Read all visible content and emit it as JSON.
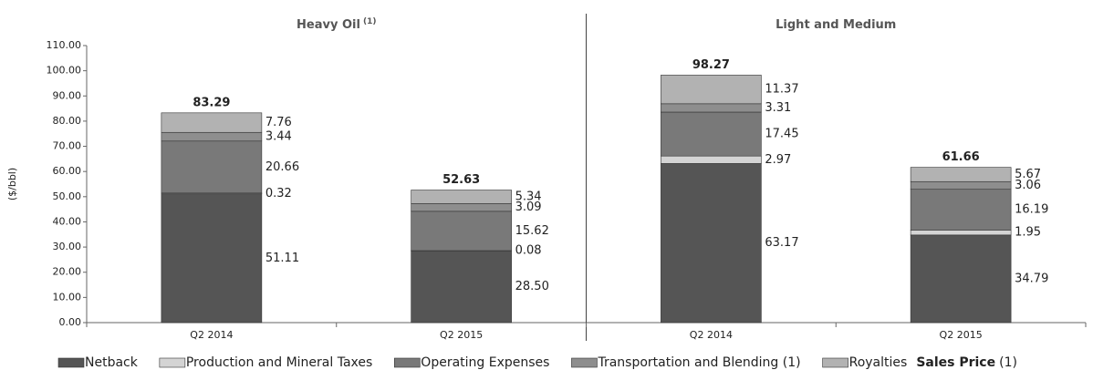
{
  "chart_data": {
    "type": "stacked_bar",
    "y_label": "($/bbl)",
    "panels": [
      {
        "title": "Heavy Oil",
        "title_note": "(1)",
        "categories": [
          "Q2 2014",
          "Q2 2015"
        ]
      },
      {
        "title": "Light and Medium",
        "categories": [
          "Q2 2014",
          "Q2 2015"
        ]
      }
    ],
    "series": [
      {
        "name": "Netback",
        "color": "#555555",
        "values": [
          51.11,
          28.5,
          63.17,
          34.79
        ],
        "value_labels": [
          "51.11",
          "28.50",
          "63.17",
          "34.79"
        ]
      },
      {
        "name": "Production and Mineral Taxes",
        "color": "#d4d4d4",
        "values": [
          0.32,
          0.08,
          2.97,
          1.95
        ],
        "value_labels": [
          "0.32",
          "0.08",
          "2.97",
          "1.95"
        ]
      },
      {
        "name": "Operating Expenses",
        "color": "#797979",
        "values": [
          20.66,
          15.62,
          17.45,
          16.19
        ],
        "value_labels": [
          "20.66",
          "15.62",
          "17.45",
          "16.19"
        ]
      },
      {
        "name": "Transportation and Blending (1)",
        "color": "#8e8e8e",
        "values": [
          3.44,
          3.09,
          3.31,
          3.06
        ],
        "value_labels": [
          "3.44",
          "3.09",
          "3.31",
          "3.06"
        ]
      },
      {
        "name": "Royalties",
        "color": "#b2b2b2",
        "values": [
          7.76,
          5.34,
          11.37,
          5.67
        ],
        "value_labels": [
          "7.76",
          "5.34",
          "11.37",
          "5.67"
        ]
      }
    ],
    "totals_name": "Sales Price",
    "totals_note": "(1)",
    "totals": [
      83.29,
      52.63,
      98.27,
      61.66
    ],
    "ylim": [
      0,
      110
    ],
    "yticks": [
      {
        "value": 0,
        "label": "0.00"
      },
      {
        "value": 10,
        "label": "10.00"
      },
      {
        "value": 20,
        "label": "20.00"
      },
      {
        "value": 30,
        "label": "30.00"
      },
      {
        "value": 40,
        "label": "40.00"
      },
      {
        "value": 50,
        "label": "50.00"
      },
      {
        "value": 60,
        "label": "60.00"
      },
      {
        "value": 70,
        "label": "70.00"
      },
      {
        "value": 80,
        "label": "80.00"
      },
      {
        "value": 90,
        "label": "90.00"
      },
      {
        "value": 100,
        "label": "100.00"
      },
      {
        "value": 110,
        "label": "110.00"
      }
    ]
  }
}
